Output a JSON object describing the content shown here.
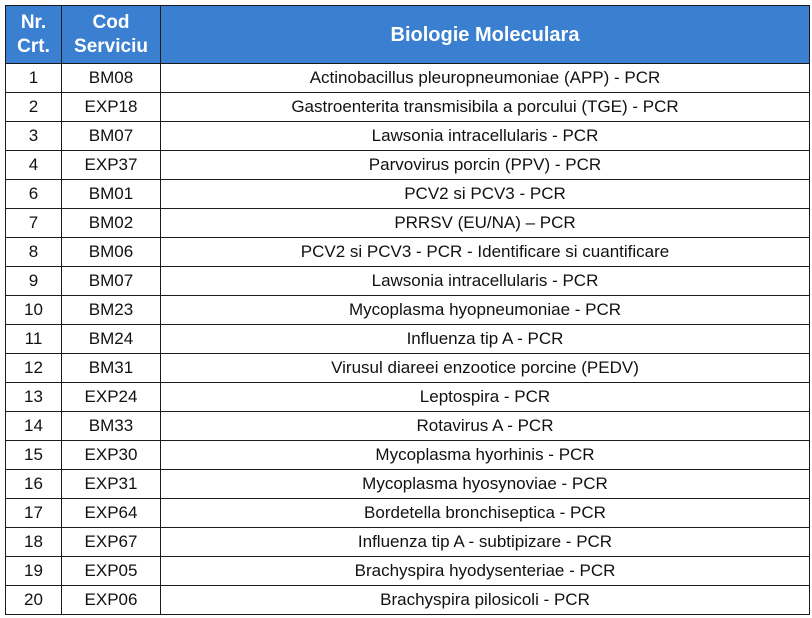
{
  "table": {
    "headers": {
      "nr_line1": "Nr.",
      "nr_line2": "Crt.",
      "cod_line1": "Cod",
      "cod_line2": "Serviciu",
      "title": "Biologie Moleculara"
    },
    "rows": [
      {
        "nr": "1",
        "cod": "BM08",
        "name": "Actinobacillus pleuropneumoniae (APP) - PCR"
      },
      {
        "nr": "2",
        "cod": "EXP18",
        "name": "Gastroenterita transmisibila a porcului (TGE) - PCR"
      },
      {
        "nr": "3",
        "cod": "BM07",
        "name": "Lawsonia intracellularis - PCR"
      },
      {
        "nr": "4",
        "cod": "EXP37",
        "name": "Parvovirus porcin (PPV) - PCR"
      },
      {
        "nr": "6",
        "cod": "BM01",
        "name": "PCV2 si PCV3 - PCR"
      },
      {
        "nr": "7",
        "cod": "BM02",
        "name": "PRRSV (EU/NA) – PCR"
      },
      {
        "nr": "8",
        "cod": "BM06",
        "name": "PCV2 si PCV3 - PCR - Identificare si cuantificare"
      },
      {
        "nr": "9",
        "cod": "BM07",
        "name": "Lawsonia intracellularis - PCR"
      },
      {
        "nr": "10",
        "cod": "BM23",
        "name": "Mycoplasma hyopneumoniae - PCR"
      },
      {
        "nr": "11",
        "cod": "BM24",
        "name": "Influenza tip A - PCR"
      },
      {
        "nr": "12",
        "cod": "BM31",
        "name": "Virusul diareei enzootice porcine (PEDV)"
      },
      {
        "nr": "13",
        "cod": "EXP24",
        "name": "Leptospira - PCR"
      },
      {
        "nr": "14",
        "cod": "BM33",
        "name": "Rotavirus A - PCR"
      },
      {
        "nr": "15",
        "cod": "EXP30",
        "name": "Mycoplasma hyorhinis - PCR"
      },
      {
        "nr": "16",
        "cod": "EXP31",
        "name": "Mycoplasma hyosynoviae - PCR"
      },
      {
        "nr": "17",
        "cod": "EXP64",
        "name": "Bordetella bronchiseptica - PCR"
      },
      {
        "nr": "18",
        "cod": "EXP67",
        "name": "Influenza tip A - subtipizare - PCR"
      },
      {
        "nr": "19",
        "cod": "EXP05",
        "name": "Brachyspira hyodysenteriae - PCR"
      },
      {
        "nr": "20",
        "cod": "EXP06",
        "name": "Brachyspira pilosicoli - PCR"
      }
    ]
  },
  "colors": {
    "header_bg": "#3a7fd0",
    "header_text": "#ffffff",
    "border": "#1a1a1a"
  }
}
